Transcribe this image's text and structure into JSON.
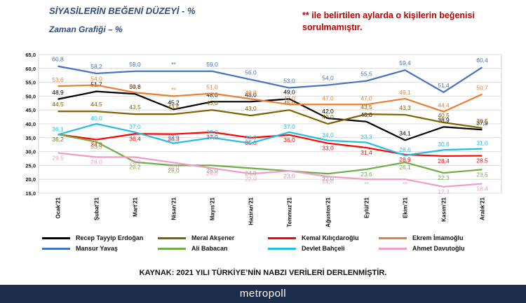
{
  "header": {
    "title": "SİYASİLERİN BEĞENİ DÜZEYİ - %",
    "subtitle": "Zaman Grafiği – %",
    "note": "** ile belirtilen aylarda o kişilerin beğenisi sorulmamıştır."
  },
  "footer": {
    "source": "KAYNAK: 2021 YILI TÜRKİYE’NİN NABZI VERİLERİ DERLENMİŞTİR.",
    "brand": "metropoll"
  },
  "chart_data": {
    "type": "line",
    "categories": [
      "Ocak'21",
      "Şubat'21",
      "Mart'21",
      "Nisan'21",
      "Mayıs'21",
      "Haziran'21",
      "Temmuz'21",
      "Ağustos'21",
      "Eylül'21",
      "Ekim'21",
      "Kasım'21",
      "Aralık'21"
    ],
    "ylim": [
      15,
      65
    ],
    "yticks": [
      "15,0",
      "20,0",
      "25,0",
      "30,0",
      "35,0",
      "40,0",
      "45,0",
      "50,0",
      "55,0",
      "60,0",
      "65,0"
    ],
    "grid": true,
    "legend_position": "bottom",
    "series": [
      {
        "name": "Recep Tayyip Erdoğan",
        "color": "#000000",
        "values": [
          48.9,
          51.7,
          50.8,
          45.2,
          48.0,
          48.0,
          49.0,
          42.0,
          40.8,
          34.1,
          38.9,
          37.9
        ],
        "labels": [
          "48,9",
          "51,7",
          "50,8",
          "45,2",
          "48,0",
          "48,0",
          "49,0",
          "42,0",
          "40,8",
          "34,1",
          "38,9",
          "37,9"
        ]
      },
      {
        "name": "Meral Akşener",
        "color": "#7f6000",
        "values": [
          44.5,
          44.5,
          43.5,
          43.5,
          45.0,
          43.0,
          45.0,
          40.0,
          43.5,
          43.3,
          40.5,
          38.5
        ],
        "labels": [
          "44,5",
          "44,5",
          "43,5",
          "43,5",
          "45,0",
          "43,0",
          "45,0",
          "40,0",
          "43,5",
          "43,3",
          "40,5",
          "38,5"
        ]
      },
      {
        "name": "Kemal Kılıçdaroğlu",
        "color": "#ff0000",
        "values": [
          36.2,
          34.3,
          36.4,
          36.3,
          37.0,
          35.0,
          36.0,
          33.0,
          31.4,
          28.9,
          28.4,
          28.5
        ],
        "labels": [
          "36,2",
          "34,3",
          "36,4",
          "36,3",
          "37,0",
          "35,0",
          "36,0",
          "33,0",
          "31,4",
          "28,9",
          "28,4",
          "28,5"
        ]
      },
      {
        "name": "Ekrem İmamoğlu",
        "color": "#ed7d31",
        "values": [
          53.6,
          54.0,
          51.3,
          50.0,
          51.0,
          49.0,
          47.0,
          47.0,
          47.0,
          49.1,
          44.4,
          50.7
        ],
        "labels": [
          "53,6",
          "54,0",
          "51,3",
          "**",
          "51,0",
          "49,0",
          "47,0",
          "47,0",
          "47,0",
          "49,1",
          "44,4",
          "50,7"
        ]
      },
      {
        "name": "Mansur Yavaş",
        "color": "#4472c4",
        "values": [
          60.8,
          58.2,
          59.0,
          59.0,
          59.0,
          56.0,
          53.0,
          54.0,
          55.5,
          59.4,
          51.4,
          60.4
        ],
        "labels": [
          "60,8",
          "58,2",
          "59,0",
          "**",
          "59,0",
          "56,0",
          "53,0",
          "54,0",
          "55,5",
          "59,4",
          "51,4",
          "60,4"
        ]
      },
      {
        "name": "Ali Babacan",
        "color": "#70ad47",
        "values": [
          36.2,
          33.5,
          26.2,
          25.0,
          25.0,
          24.0,
          23.0,
          22.0,
          23.6,
          26.1,
          22.3,
          23.5
        ],
        "labels": [
          "36,2",
          "33,5",
          "26,2",
          "25,0",
          "25,0",
          "24,0",
          "23,0",
          "22,0",
          "23,6",
          "26,1",
          "22,3",
          "23,5"
        ]
      },
      {
        "name": "Devlet Bahçeli",
        "color": "#23bde0",
        "values": [
          36.1,
          40.0,
          37.0,
          33.0,
          35.0,
          33.0,
          37.0,
          34.0,
          33.3,
          28.6,
          30.6,
          31.0
        ],
        "labels": [
          "36,1",
          "40,0",
          "37,0",
          "33,0",
          "35,0",
          "33,0",
          "37,0",
          "34,0",
          "33,3",
          "28,6",
          "30,6",
          "31,0"
        ]
      },
      {
        "name": "Ahmet Davutoğlu",
        "color": "#f29ac8",
        "values": [
          29.5,
          28.0,
          28.0,
          26.0,
          24.0,
          22.0,
          23.0,
          21.0,
          20.0,
          20.0,
          17.3,
          18.4
        ],
        "labels": [
          "29,5",
          "28,0",
          "28,0",
          "26,0",
          "24,0",
          "22,0",
          "23,0",
          "21,0",
          "**",
          "**",
          "17,3",
          "18,4"
        ]
      }
    ]
  }
}
